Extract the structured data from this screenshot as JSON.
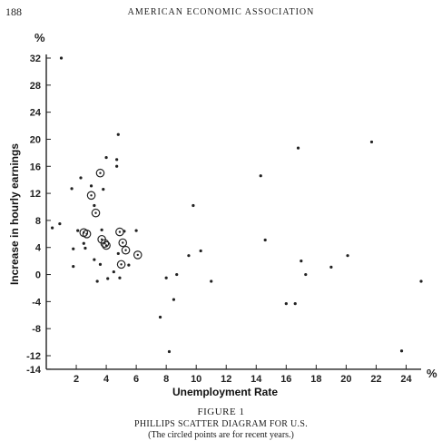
{
  "page": {
    "page_number": "188",
    "running_head": "AMERICAN ECONOMIC ASSOCIATION"
  },
  "figure": {
    "label": "FIGURE 1",
    "caption": "PHILLIPS SCATTER DIAGRAM FOR U.S.",
    "note": "(The circled points are for recent years.)"
  },
  "chart_data": {
    "type": "scatter",
    "xlabel": "Unemployment Rate",
    "ylabel": "Increase in hourly earnings",
    "x_unit": "%",
    "y_unit": "%",
    "xlim": [
      0,
      25
    ],
    "ylim": [
      -14,
      33
    ],
    "x_ticks": [
      2,
      4,
      6,
      8,
      10,
      12,
      14,
      16,
      18,
      20,
      22,
      24
    ],
    "y_ticks": [
      32,
      28,
      24,
      20,
      16,
      12,
      8,
      4,
      0,
      -4,
      -8,
      -12,
      -14
    ],
    "grid": false,
    "legend": "none",
    "series": [
      {
        "marker": "dot",
        "points": [
          [
            1.0,
            32.0
          ],
          [
            0.9,
            7.5
          ],
          [
            0.4,
            6.9
          ],
          [
            1.7,
            12.7
          ],
          [
            1.8,
            3.8
          ],
          [
            1.8,
            1.2
          ],
          [
            2.1,
            6.5
          ],
          [
            2.3,
            14.3
          ],
          [
            2.5,
            4.6
          ],
          [
            2.6,
            3.9
          ],
          [
            3.0,
            13.1
          ],
          [
            3.2,
            10.2
          ],
          [
            3.2,
            2.2
          ],
          [
            3.4,
            -1.0
          ],
          [
            3.6,
            1.5
          ],
          [
            3.8,
            12.6
          ],
          [
            3.7,
            6.6
          ],
          [
            4.0,
            17.3
          ],
          [
            4.1,
            -0.6
          ],
          [
            4.5,
            0.4
          ],
          [
            4.7,
            17.0
          ],
          [
            4.7,
            16.0
          ],
          [
            4.8,
            20.7
          ],
          [
            4.8,
            3.1
          ],
          [
            4.9,
            -0.5
          ],
          [
            5.2,
            6.4
          ],
          [
            5.5,
            1.4
          ],
          [
            6.0,
            6.5
          ],
          [
            7.6,
            -6.3
          ],
          [
            8.0,
            -0.5
          ],
          [
            8.2,
            -11.4
          ],
          [
            8.5,
            -3.7
          ],
          [
            8.7,
            0.0
          ],
          [
            9.5,
            2.8
          ],
          [
            9.8,
            10.2
          ],
          [
            10.3,
            3.5
          ],
          [
            11.0,
            -1.0
          ],
          [
            14.3,
            14.6
          ],
          [
            14.6,
            5.1
          ],
          [
            16.0,
            -4.3
          ],
          [
            16.6,
            -4.3
          ],
          [
            16.8,
            18.7
          ],
          [
            17.0,
            2.0
          ],
          [
            17.3,
            0.0
          ],
          [
            19.0,
            1.1
          ],
          [
            20.1,
            2.8
          ],
          [
            21.7,
            19.6
          ],
          [
            23.7,
            -11.3
          ],
          [
            25.0,
            -1.0
          ]
        ]
      },
      {
        "marker": "circled",
        "points": [
          [
            2.5,
            6.2
          ],
          [
            2.7,
            6.0
          ],
          [
            3.0,
            11.7
          ],
          [
            3.3,
            9.1
          ],
          [
            3.6,
            15.0
          ],
          [
            3.7,
            5.2
          ],
          [
            3.9,
            4.6
          ],
          [
            4.0,
            4.3
          ],
          [
            4.9,
            6.3
          ],
          [
            5.1,
            4.7
          ],
          [
            5.3,
            3.6
          ],
          [
            6.1,
            2.9
          ],
          [
            5.0,
            1.5
          ]
        ]
      }
    ]
  }
}
